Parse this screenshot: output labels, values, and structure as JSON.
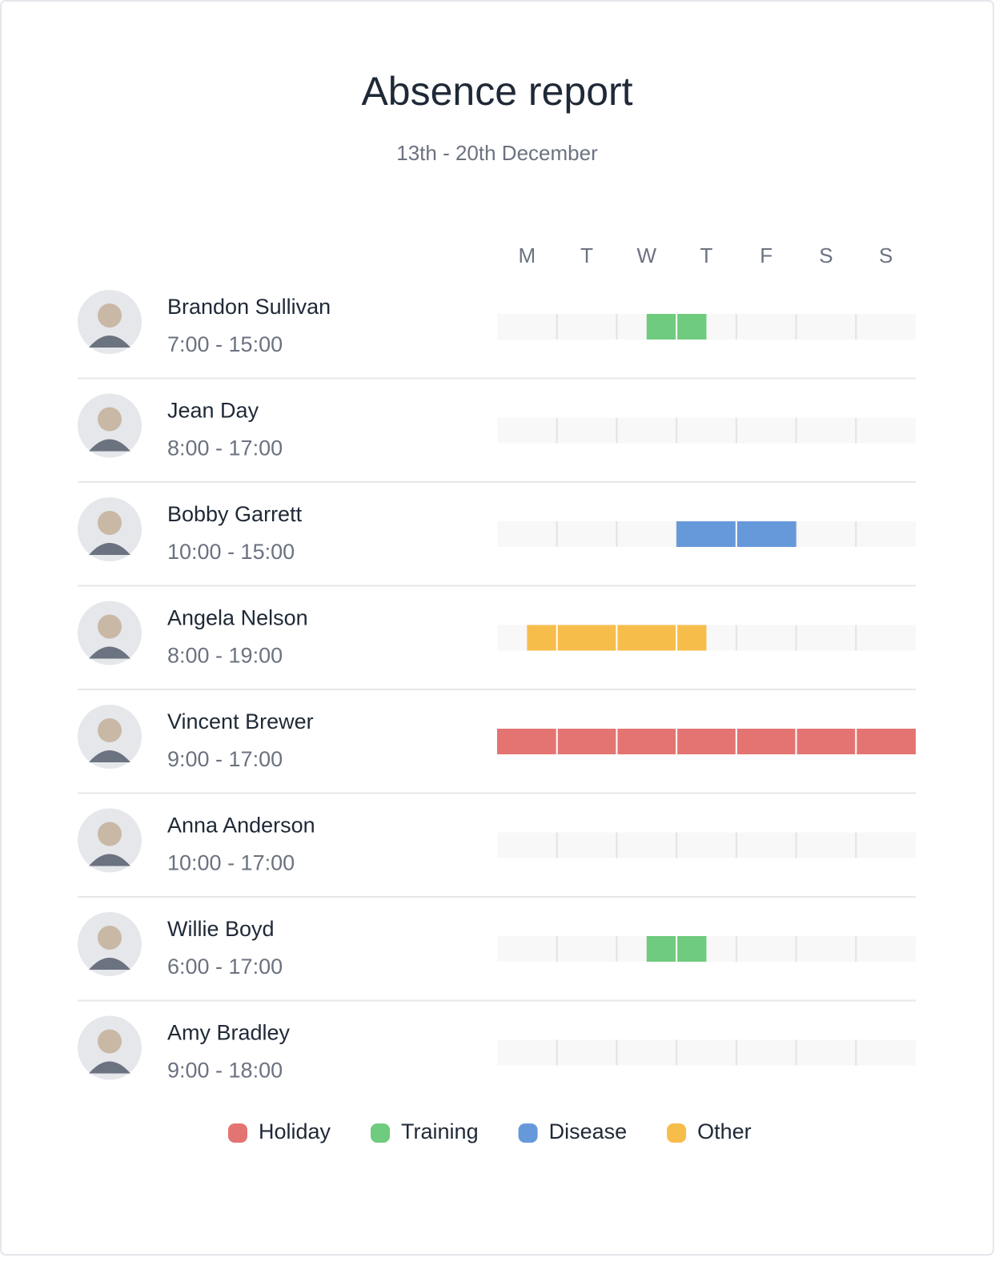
{
  "header": {
    "title": "Absence report",
    "subtitle": "13th - 20th December"
  },
  "days": [
    "M",
    "T",
    "W",
    "T",
    "F",
    "S",
    "S"
  ],
  "people": [
    {
      "name": "Brandon Sullivan",
      "hours": "7:00 - 15:00",
      "absences": [
        {
          "type": "Training",
          "start": 2.5,
          "end": 3.5
        }
      ]
    },
    {
      "name": "Jean Day",
      "hours": "8:00 - 17:00",
      "absences": []
    },
    {
      "name": "Bobby Garrett",
      "hours": "10:00 - 15:00",
      "absences": [
        {
          "type": "Disease",
          "start": 3,
          "end": 5
        }
      ]
    },
    {
      "name": "Angela Nelson",
      "hours": "8:00 - 19:00",
      "absences": [
        {
          "type": "Other",
          "start": 0.5,
          "end": 3.5
        }
      ]
    },
    {
      "name": "Vincent Brewer",
      "hours": "9:00 - 17:00",
      "absences": [
        {
          "type": "Holiday",
          "start": 0,
          "end": 7
        }
      ]
    },
    {
      "name": "Anna Anderson",
      "hours": "10:00 - 17:00",
      "absences": []
    },
    {
      "name": "Willie Boyd",
      "hours": "6:00 - 17:00",
      "absences": [
        {
          "type": "Training",
          "start": 2.5,
          "end": 3.5
        }
      ]
    },
    {
      "name": "Amy Bradley",
      "hours": "9:00 - 18:00",
      "absences": []
    }
  ],
  "legend": [
    {
      "label": "Holiday",
      "color": "#e47472"
    },
    {
      "label": "Training",
      "color": "#6fcb7d"
    },
    {
      "label": "Disease",
      "color": "#6699da"
    },
    {
      "label": "Other",
      "color": "#f7bd4b"
    }
  ]
}
